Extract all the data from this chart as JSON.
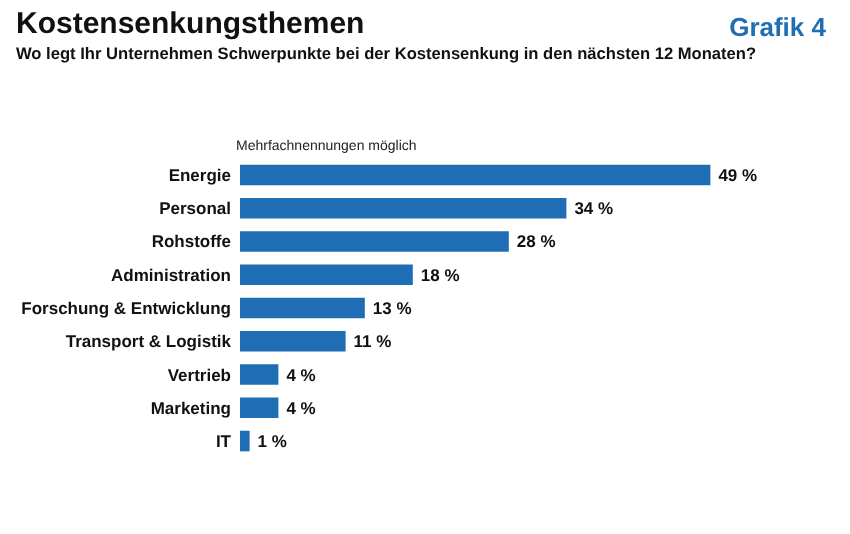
{
  "chart_data": {
    "type": "bar",
    "orientation": "horizontal",
    "title": "Kostensenkungsthemen",
    "subtitle": "Wo legt Ihr Unternehmen Schwerpunkte bei der Kostensenkung in den nächsten 12 Monaten?",
    "annotations": [
      "Grafik 4",
      "Mehrfachnennungen möglich"
    ],
    "categories": [
      "Energie",
      "Personal",
      "Rohstoffe",
      "Administration",
      "Forschung & Entwicklung",
      "Transport & Logistik",
      "Vertrieb",
      "Marketing",
      "IT"
    ],
    "values": [
      49,
      34,
      28,
      18,
      13,
      11,
      4,
      4,
      1
    ],
    "value_labels": [
      "49 %",
      "34 %",
      "28 %",
      "18 %",
      "13 %",
      "11 %",
      "4 %",
      "4 %",
      "1 %"
    ],
    "color": "#1f6db4",
    "tick_labels": "y"
  }
}
